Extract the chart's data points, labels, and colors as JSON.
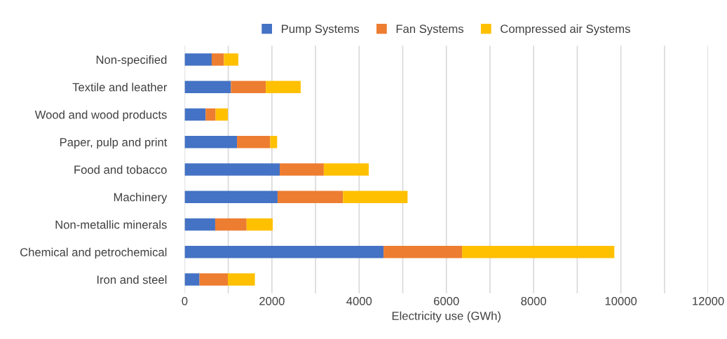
{
  "chart_data": {
    "type": "bar",
    "orientation": "horizontal",
    "stacked": true,
    "xlabel": "Electricity use (GWh)",
    "categories": [
      "Non-specified",
      "Textile and leather",
      "Wood and wood products",
      "Paper, pulp and print",
      "Food and tobacco",
      "Machinery",
      "Non-metallic minerals",
      "Chemical and petrochemical",
      "Iron and steel"
    ],
    "series": [
      {
        "name": "Pump Systems",
        "color": "#4472c4",
        "values": [
          620,
          1060,
          480,
          1200,
          2180,
          2130,
          700,
          4560,
          340
        ]
      },
      {
        "name": "Fan Systems",
        "color": "#ed7d31",
        "values": [
          280,
          800,
          230,
          760,
          1010,
          1500,
          720,
          1800,
          650
        ]
      },
      {
        "name": "Compressed air Systems",
        "color": "#ffc000",
        "values": [
          330,
          800,
          280,
          160,
          1030,
          1480,
          600,
          3490,
          620
        ]
      }
    ],
    "xlim": [
      0,
      12000
    ],
    "xticks": [
      0,
      {
        "value": 1000,
        "label": null
      },
      2000,
      {
        "value": 3000,
        "label": null
      },
      4000,
      {
        "value": 5000,
        "label": null
      },
      6000,
      {
        "value": 7000,
        "label": null
      },
      8000,
      {
        "value": 9000,
        "label": null
      },
      10000,
      {
        "value": 11000,
        "label": null
      },
      12000
    ],
    "grid": "x",
    "legend": "top"
  }
}
